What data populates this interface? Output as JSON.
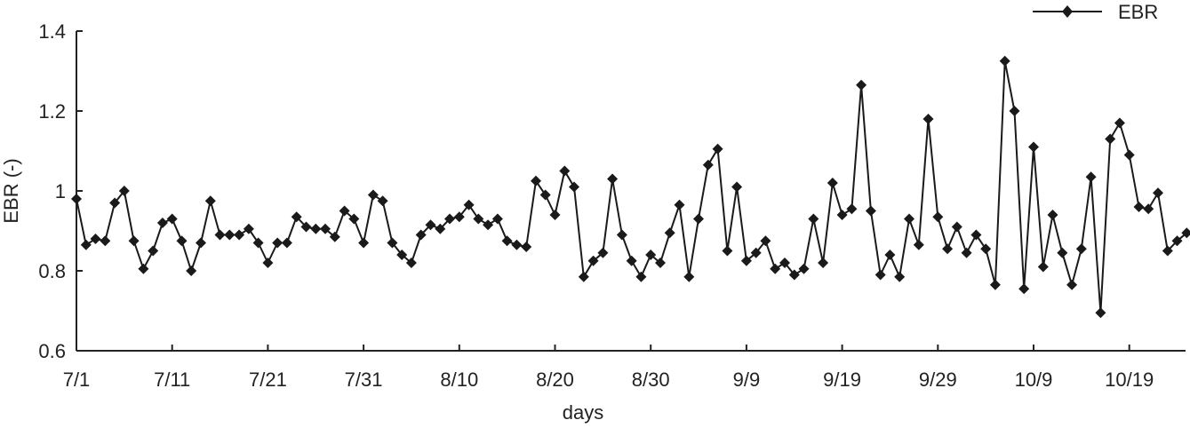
{
  "chart_data": {
    "type": "line",
    "xlabel": "days",
    "ylabel": "EBR (-)",
    "ylim": [
      0.6,
      1.4
    ],
    "yticks": [
      "0.6",
      "0.8",
      "1",
      "1.2",
      "1.4"
    ],
    "xtick_labels": [
      "7/1",
      "7/11",
      "7/21",
      "7/31",
      "8/10",
      "8/20",
      "8/30",
      "9/9",
      "9/19",
      "9/29",
      "10/9",
      "10/19"
    ],
    "x_start": "7/1",
    "grid": false,
    "legend": "top-right",
    "colors": {
      "series": "#1a1a1a",
      "axis": "#222222",
      "background": "#ffffff"
    },
    "series": [
      {
        "name": "EBR",
        "marker": "diamond",
        "values": [
          0.98,
          0.865,
          0.88,
          0.875,
          0.97,
          1.0,
          0.875,
          0.805,
          0.85,
          0.92,
          0.93,
          0.875,
          0.8,
          0.87,
          0.975,
          0.89,
          0.89,
          0.89,
          0.905,
          0.87,
          0.82,
          0.87,
          0.87,
          0.935,
          0.91,
          0.905,
          0.905,
          0.885,
          0.95,
          0.93,
          0.87,
          0.99,
          0.975,
          0.87,
          0.84,
          0.82,
          0.89,
          0.915,
          0.905,
          0.93,
          0.935,
          0.965,
          0.93,
          0.915,
          0.93,
          0.875,
          0.865,
          0.86,
          1.025,
          0.99,
          0.94,
          1.05,
          1.01,
          0.785,
          0.825,
          0.845,
          1.03,
          0.89,
          0.825,
          0.785,
          0.84,
          0.82,
          0.895,
          0.965,
          0.785,
          0.93,
          1.065,
          1.105,
          0.85,
          1.01,
          0.825,
          0.845,
          0.875,
          0.805,
          0.82,
          0.79,
          0.805,
          0.93,
          0.82,
          1.02,
          0.94,
          0.955,
          1.265,
          0.95,
          0.79,
          0.84,
          0.785,
          0.93,
          0.865,
          1.18,
          0.935,
          0.855,
          0.91,
          0.845,
          0.89,
          0.855,
          0.765,
          1.325,
          1.2,
          0.755,
          1.11,
          0.81,
          0.94,
          0.845,
          0.765,
          0.855,
          1.035,
          0.695,
          1.13,
          1.17,
          1.09,
          0.96,
          0.955,
          0.995,
          0.85,
          0.875,
          0.895
        ]
      }
    ]
  }
}
